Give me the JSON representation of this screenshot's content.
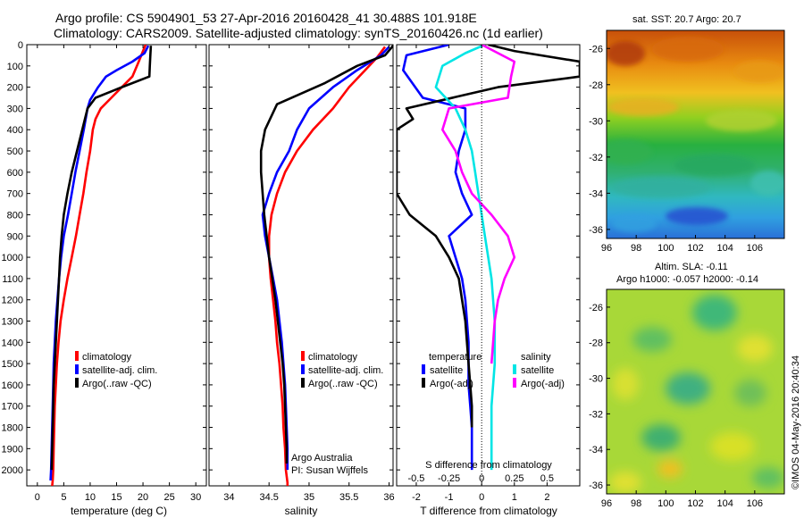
{
  "header": {
    "line1": "Argo profile: CS 5904901_53 27-Apr-2016 20160428_41 30.488S 101.918E",
    "line2": "Climatology: CARS2009. Satellite-adjusted climatology: synTS_20160426.nc (1d earlier)"
  },
  "colors": {
    "climatology": "#ff0000",
    "satellite": "#0000ff",
    "argo": "#000000",
    "satellite_salinity": "#00e5e5",
    "argo_salinity": "#ff00ff"
  },
  "chart_data": [
    {
      "type": "line",
      "id": "temperature-profile",
      "xlabel": "temperature (deg C)",
      "xlim": [
        -2,
        32
      ],
      "ylim": [
        2075,
        0
      ],
      "xticks": [
        0,
        5,
        10,
        15,
        20,
        25,
        30
      ],
      "yticks": [
        0,
        100,
        200,
        300,
        400,
        500,
        600,
        700,
        800,
        900,
        1000,
        1100,
        1200,
        1300,
        1400,
        1500,
        1600,
        1700,
        1800,
        1900,
        2000
      ],
      "legend": [
        "climatology",
        "satellite-adj. clim.",
        "Argo(..raw -QC)"
      ],
      "series": [
        {
          "name": "climatology",
          "color": "#ff0000",
          "x": [
            20.5,
            20,
            19.2,
            18,
            16,
            14,
            12,
            11,
            10.5,
            10,
            9.3,
            8.7,
            8,
            7.3,
            6.5,
            5.7,
            5,
            4.4,
            4,
            3.7,
            3.5,
            3.3,
            3.2,
            3.1,
            3.0,
            2.9,
            2.8
          ],
          "y": [
            0,
            30,
            80,
            150,
            200,
            250,
            300,
            350,
            400,
            500,
            600,
            700,
            800,
            900,
            1000,
            1100,
            1200,
            1300,
            1400,
            1500,
            1600,
            1700,
            1800,
            1900,
            2000,
            2050,
            2075
          ]
        },
        {
          "name": "satellite-adj. clim.",
          "color": "#0000ff",
          "x": [
            21,
            20.3,
            18,
            15,
            13,
            11.5,
            10,
            9.5,
            8.8,
            8,
            7.2,
            6.5,
            5.8,
            5,
            4.5,
            4.1,
            3.8,
            3.5,
            3.3,
            3.1,
            3.0,
            2.9,
            2.8,
            2.7,
            2.6,
            2.5
          ],
          "y": [
            5,
            40,
            80,
            120,
            150,
            200,
            260,
            300,
            400,
            500,
            600,
            700,
            800,
            900,
            1000,
            1100,
            1200,
            1300,
            1400,
            1500,
            1600,
            1700,
            1800,
            1900,
            2000,
            2050
          ]
        },
        {
          "name": "Argo(..raw -QC)",
          "color": "#000000",
          "x": [
            21.5,
            21.4,
            21.3,
            21.2,
            16,
            11,
            9.5,
            8.5,
            7.5,
            6.5,
            5.7,
            5,
            4.6,
            4.3,
            4.1,
            3.9,
            3.7,
            3.5,
            3.3,
            3.1,
            3.0,
            2.9,
            2.8,
            2.7
          ],
          "y": [
            5,
            50,
            100,
            150,
            200,
            250,
            300,
            400,
            500,
            600,
            700,
            800,
            900,
            1000,
            1100,
            1200,
            1300,
            1400,
            1500,
            1600,
            1700,
            1800,
            1900,
            2000
          ]
        }
      ]
    },
    {
      "type": "line",
      "id": "salinity-profile",
      "xlabel": "salinity",
      "xlim": [
        33.75,
        36.05
      ],
      "ylim": [
        2075,
        0
      ],
      "xticks": [
        34,
        34.5,
        35,
        35.5,
        36
      ],
      "legend": [
        "climatology",
        "satellite-adj. clim.",
        "Argo(..raw -QC)"
      ],
      "series": [
        {
          "name": "climatology",
          "color": "#ff0000",
          "x": [
            35.95,
            35.85,
            35.7,
            35.5,
            35.3,
            35.05,
            34.85,
            34.7,
            34.6,
            34.53,
            34.5,
            34.5,
            34.52,
            34.55,
            34.58,
            34.6,
            34.63,
            34.65,
            34.67,
            34.68,
            34.7,
            34.71,
            34.72,
            34.73,
            34.73
          ],
          "y": [
            10,
            60,
            120,
            200,
            300,
            400,
            500,
            600,
            700,
            800,
            900,
            1000,
            1100,
            1200,
            1300,
            1400,
            1500,
            1600,
            1700,
            1800,
            1900,
            2000,
            2030,
            2060,
            2075
          ]
        },
        {
          "name": "satellite-adj. clim.",
          "color": "#0000ff",
          "x": [
            36.0,
            35.9,
            35.6,
            35.3,
            35.0,
            34.85,
            34.75,
            34.6,
            34.5,
            34.42,
            34.45,
            34.5,
            34.55,
            34.6,
            34.63,
            34.66,
            34.68,
            34.7,
            34.71,
            34.72,
            34.73,
            34.73
          ],
          "y": [
            10,
            50,
            120,
            200,
            300,
            400,
            500,
            600,
            700,
            800,
            900,
            1000,
            1100,
            1200,
            1300,
            1400,
            1500,
            1600,
            1700,
            1800,
            1900,
            2000
          ]
        },
        {
          "name": "Argo(..raw -QC)",
          "color": "#000000",
          "x": [
            36.05,
            35.95,
            35.6,
            35.2,
            34.6,
            34.45,
            34.4,
            34.4,
            34.42,
            34.44,
            34.47,
            34.5,
            34.54,
            34.58,
            34.61,
            34.64,
            34.67,
            34.69,
            34.7,
            34.71,
            34.72,
            34.72
          ],
          "y": [
            5,
            50,
            100,
            180,
            280,
            400,
            500,
            600,
            700,
            800,
            900,
            1000,
            1100,
            1200,
            1300,
            1400,
            1500,
            1600,
            1700,
            1800,
            1900,
            1970
          ]
        }
      ],
      "annotation": [
        "Argo Australia",
        "PI: Susan Wijffels"
      ]
    },
    {
      "type": "line",
      "id": "difference-profile",
      "xlabel": "T difference from climatology",
      "xlabel_top": "S difference from climatology",
      "xlim": [
        -2.6,
        3.0
      ],
      "ylim": [
        2075,
        0
      ],
      "xticks": [
        -2,
        -1,
        0,
        1,
        2
      ],
      "xticks_salinity": [
        "-0.5",
        "-0.25",
        "0",
        "0.25",
        "0.5"
      ],
      "legend": [
        "temperature",
        "satellite",
        "Argo(-adj)",
        "salinity",
        "satellite",
        "Argo(-adj)"
      ],
      "series": [
        {
          "name": "temperature satellite",
          "color": "#0000ff",
          "x": [
            -1.0,
            -2.3,
            -2.4,
            -1.8,
            -0.5,
            -0.5,
            -0.7,
            -0.8,
            -0.6,
            -0.3,
            -1.0,
            -0.8,
            -0.6,
            -0.5,
            -0.45,
            -0.4,
            -0.4,
            -0.4,
            -0.35,
            -0.3,
            -0.3,
            -0.3
          ],
          "y": [
            0,
            50,
            120,
            250,
            300,
            400,
            500,
            600,
            700,
            800,
            900,
            1000,
            1100,
            1200,
            1300,
            1400,
            1500,
            1600,
            1700,
            1800,
            1900,
            2000
          ]
        },
        {
          "name": "temperature Argo(-adj)",
          "color": "#000000",
          "x": [
            0.2,
            1.0,
            3.0,
            3.0,
            0.5,
            -2.3,
            -2.1,
            -2.6,
            -2.6,
            -2.6,
            -2.2,
            -1.4,
            -1.0,
            -0.7,
            -0.6,
            -0.5,
            -0.45,
            -0.4,
            -0.35,
            -0.3,
            -0.3
          ],
          "y": [
            0,
            30,
            80,
            150,
            200,
            300,
            350,
            400,
            500,
            700,
            800,
            900,
            1000,
            1100,
            1200,
            1300,
            1400,
            1500,
            1600,
            1700,
            1800
          ]
        },
        {
          "name": "salinity satellite",
          "color": "#00e5e5",
          "x": [
            0.1,
            -0.5,
            -1.2,
            -1.4,
            -0.8,
            -0.5,
            -0.3,
            -0.2,
            -0.1,
            0.0,
            0.1,
            0.2,
            0.3,
            0.35,
            0.4,
            0.4,
            0.4,
            0.35,
            0.3,
            0.3,
            0.3,
            0.3
          ],
          "y": [
            0,
            40,
            100,
            200,
            300,
            400,
            500,
            600,
            700,
            800,
            900,
            1000,
            1100,
            1200,
            1300,
            1400,
            1500,
            1600,
            1700,
            1800,
            1900,
            2000
          ]
        },
        {
          "name": "salinity Argo(-adj)",
          "color": "#ff00ff",
          "x": [
            0.0,
            1.0,
            0.9,
            0.8,
            -1.0,
            -1.2,
            -0.8,
            -0.6,
            -0.3,
            0.3,
            0.8,
            1.0,
            0.7,
            0.5,
            0.4,
            0.35,
            0.3
          ],
          "y": [
            0,
            80,
            150,
            250,
            300,
            400,
            500,
            600,
            700,
            800,
            900,
            1000,
            1100,
            1200,
            1300,
            1400,
            1500
          ]
        }
      ]
    },
    {
      "type": "heatmap",
      "id": "sst-map",
      "title": "sat. SST: 20.7  Argo: 20.7",
      "xlim": [
        96,
        108
      ],
      "ylim": [
        -36.5,
        -25
      ],
      "xticks": [
        96,
        98,
        100,
        102,
        104,
        106
      ],
      "yticks": [
        -26,
        -28,
        -30,
        -32,
        -34,
        -36
      ]
    },
    {
      "type": "heatmap",
      "id": "sla-map",
      "title": "Altim. SLA: -0.11",
      "subtitle": "Argo h1000: -0.057 h2000: -0.14",
      "xlim": [
        96,
        108
      ],
      "ylim": [
        -36.5,
        -25
      ],
      "xticks": [
        96,
        98,
        100,
        102,
        104,
        106
      ],
      "yticks": [
        -26,
        -28,
        -30,
        -32,
        -34,
        -36
      ],
      "side_label": "©IMOS 04-May-2016 20:40:34"
    }
  ]
}
